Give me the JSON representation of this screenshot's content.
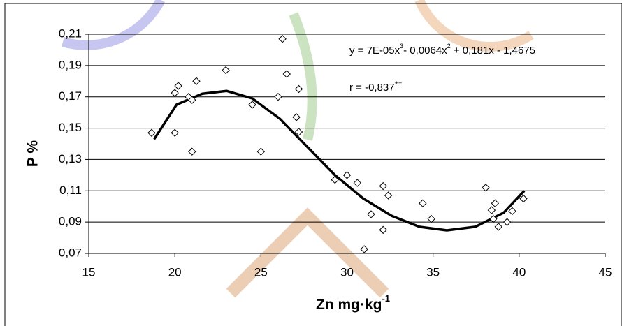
{
  "chart_data": {
    "type": "scatter",
    "x_label": [
      "Zn mg·kg",
      "-1"
    ],
    "y_label": "P %",
    "annotations": [
      [
        "y = 7E-05x",
        "3",
        "- 0,0064x",
        "2",
        " + 0,181x - 1,4675"
      ],
      [
        "r = -0,837",
        "++"
      ]
    ],
    "marker_color": "#000000",
    "x": [
      18.65,
      20.0,
      20.2,
      20.0,
      20.8,
      21.0,
      21.25,
      21.0,
      22.96,
      24.5,
      25.0,
      26.0,
      26.25,
      26.5,
      27.06,
      27.2,
      27.2,
      29.3,
      30.0,
      30.6,
      31.0,
      31.4,
      32.1,
      32.1,
      32.4,
      34.4,
      34.9,
      38.06,
      38.4,
      38.6,
      38.5,
      38.8,
      39.3,
      39.6,
      40.25
    ],
    "values": [
      0.147,
      0.1725,
      0.177,
      0.147,
      0.17,
      0.168,
      0.18,
      0.135,
      0.187,
      0.165,
      0.135,
      0.17,
      0.207,
      0.1846,
      0.157,
      0.175,
      0.1476,
      0.117,
      0.12,
      0.115,
      0.0727,
      0.095,
      0.113,
      0.085,
      0.107,
      0.102,
      0.092,
      0.112,
      0.0976,
      0.102,
      0.092,
      0.087,
      0.09,
      0.097,
      0.105
    ],
    "trendline": {
      "color": "#000000",
      "x": [
        18.8,
        20.1,
        21.6,
        23.0,
        24.5,
        26.1,
        27.7,
        29.3,
        30.95,
        32.6,
        34.2,
        35.8,
        37.45,
        39.1,
        40.3
      ],
      "values": [
        0.143,
        0.165,
        0.172,
        0.1738,
        0.169,
        0.156,
        0.138,
        0.12,
        0.105,
        0.094,
        0.087,
        0.0847,
        0.087,
        0.096,
        0.11
      ]
    },
    "xlim": [
      15,
      45
    ],
    "xticks": [
      15,
      20,
      25,
      30,
      35,
      40,
      45
    ],
    "ylim": [
      0.07,
      0.21
    ],
    "yticks": [
      {
        "value": 0.07,
        "label": "0,07"
      },
      {
        "value": 0.09,
        "label": "0,09"
      },
      {
        "value": 0.11,
        "label": "0,11"
      },
      {
        "value": 0.13,
        "label": "0,13"
      },
      {
        "value": 0.15,
        "label": "0,15"
      },
      {
        "value": 0.17,
        "label": "0,17"
      },
      {
        "value": 0.19,
        "label": "0,19"
      },
      {
        "value": 0.21,
        "label": "0,21"
      }
    ],
    "grid": true
  }
}
